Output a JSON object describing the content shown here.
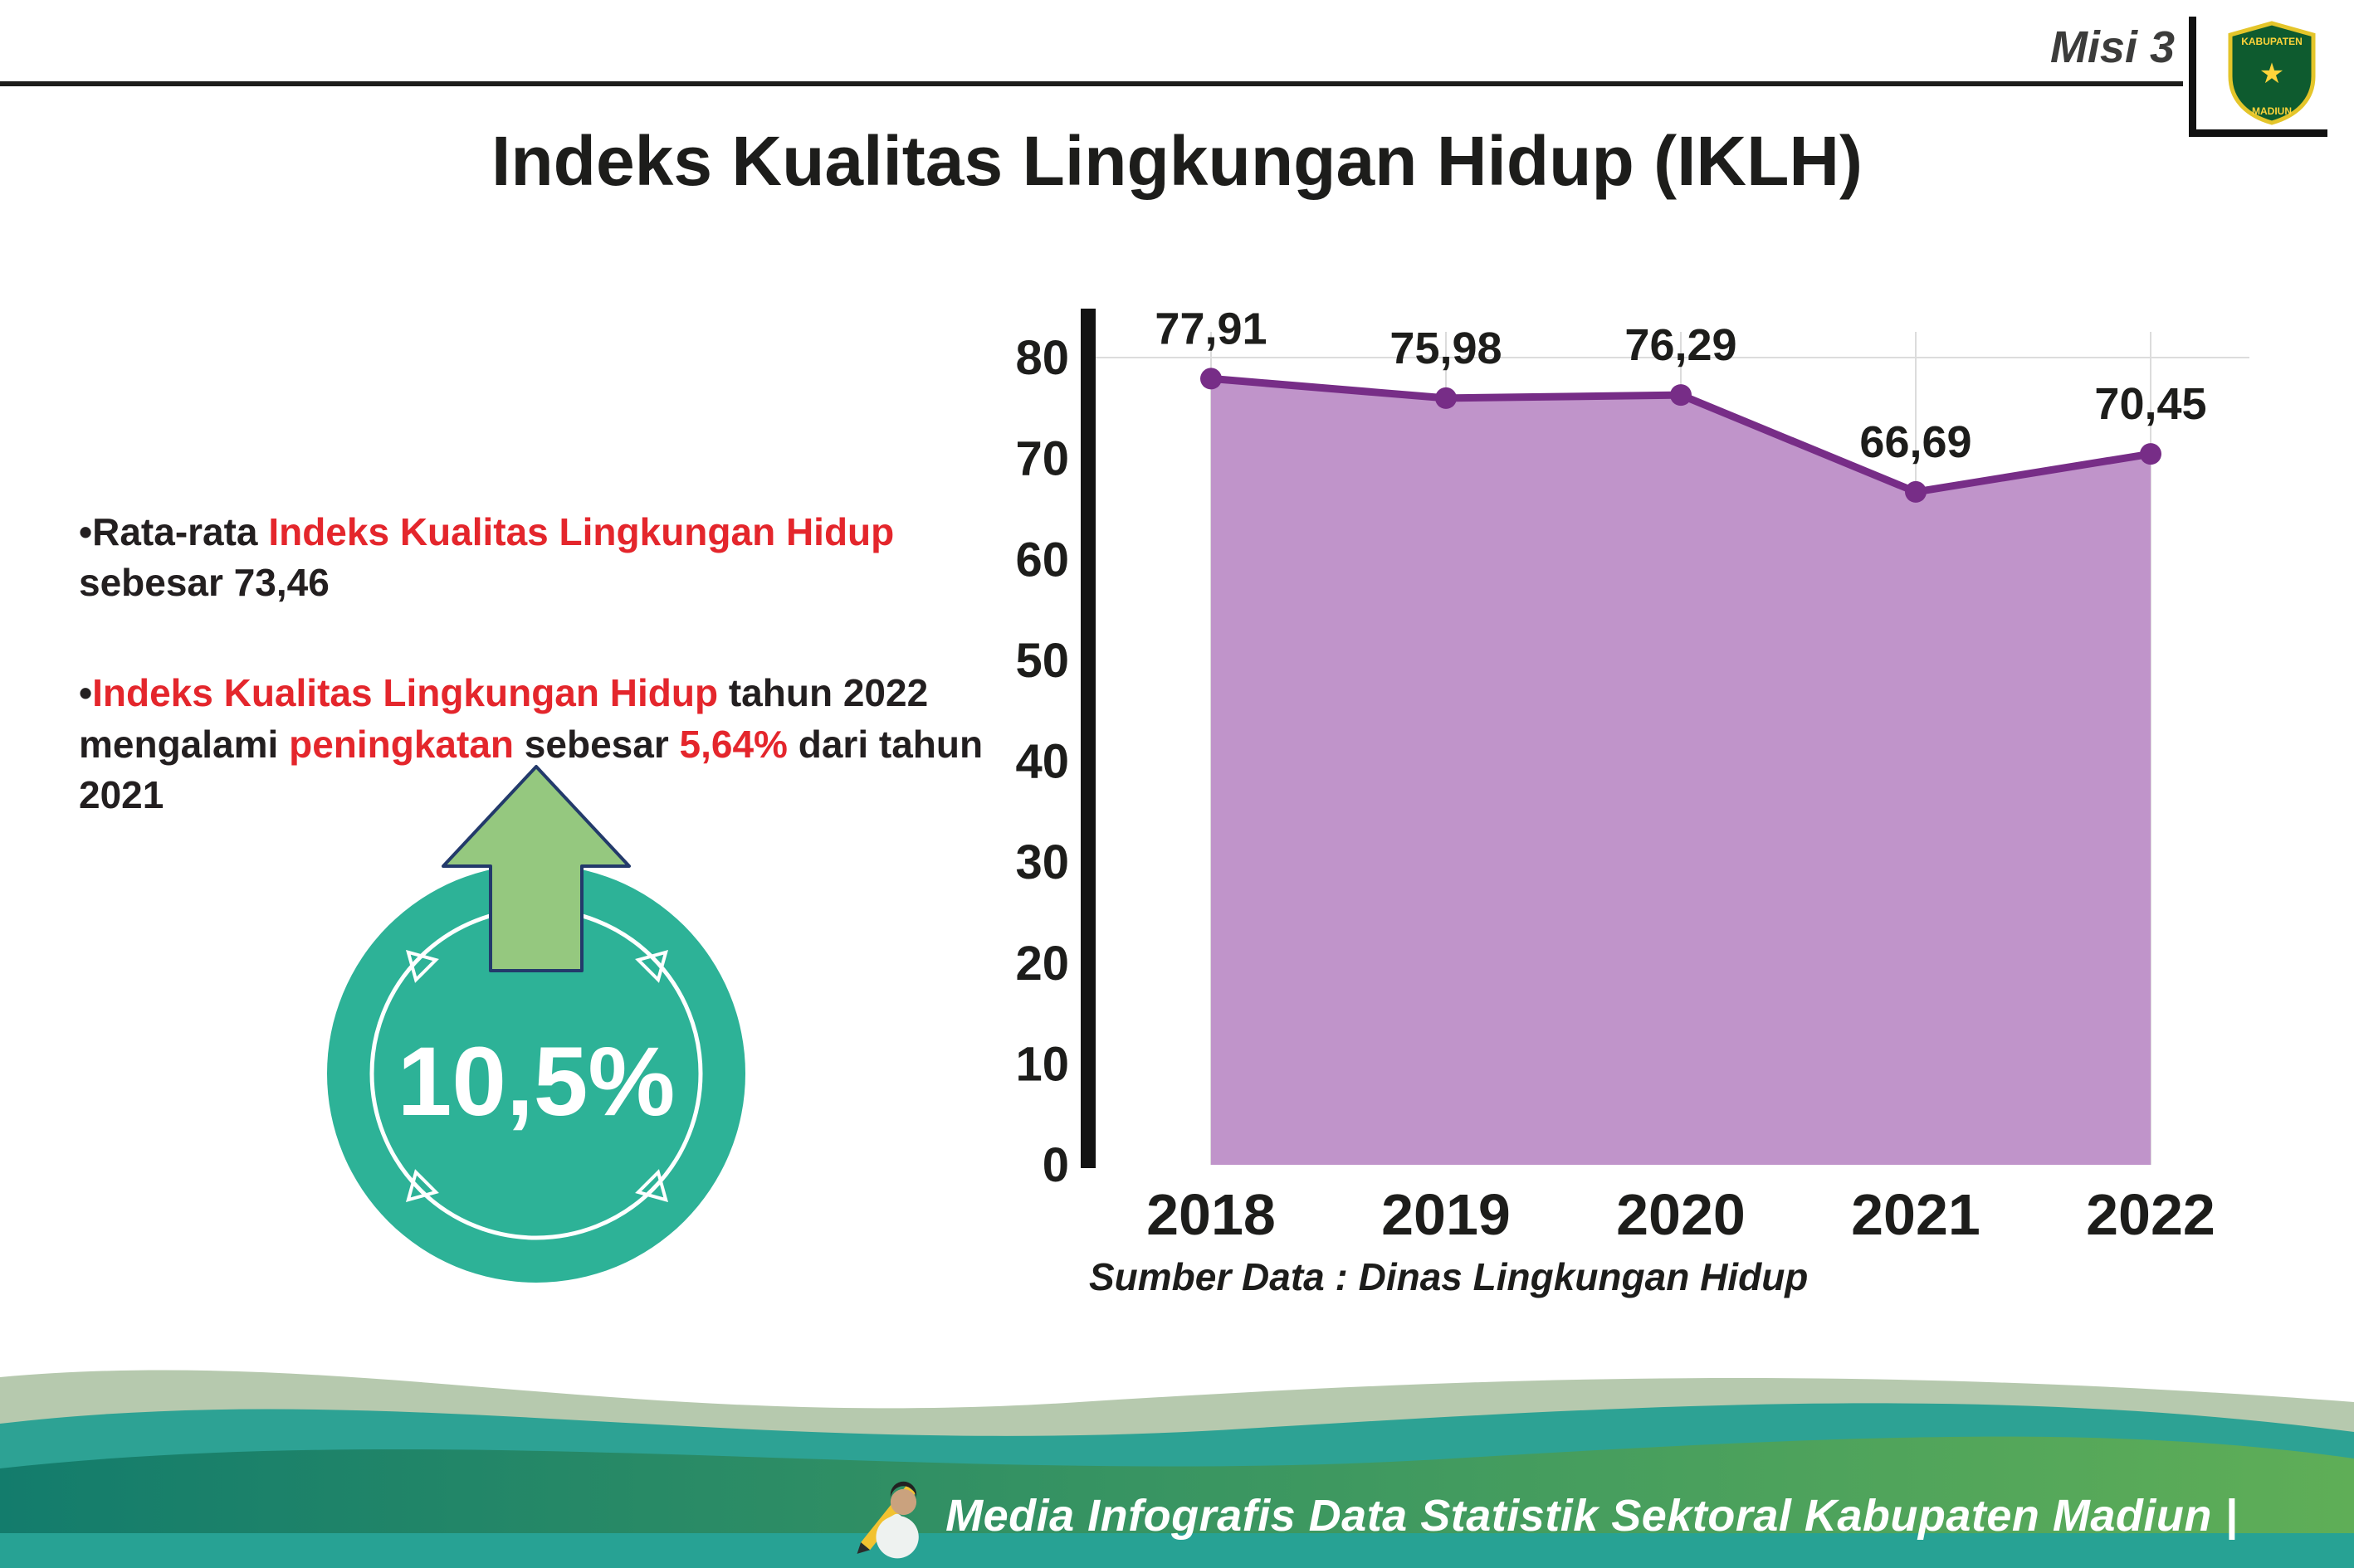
{
  "header": {
    "misi_label": "Misi 3",
    "title": "Indeks Kualitas Lingkungan Hidup (IKLH)",
    "logo": {
      "top": "KABUPATEN",
      "bottom": "MADIUN"
    }
  },
  "bullets": {
    "b1": {
      "bullet": "•",
      "s1": "Rata-rata ",
      "s2": "Indeks Kualitas Lingkungan Hidup",
      "s3": " sebesar 73,46"
    },
    "b2": {
      "bullet": "•",
      "s1": "Indeks Kualitas Lingkungan Hidup",
      "s2": " tahun 2022 mengalami ",
      "s3": "peningkatan",
      "s4": " sebesar ",
      "s5": "5,64%",
      "s6": " dari tahun 2021"
    }
  },
  "badge": {
    "value": "10,5%"
  },
  "chart_data": {
    "type": "area",
    "title": "Indeks Kualitas Lingkungan Hidup (IKLH)",
    "categories": [
      "2018",
      "2019",
      "2020",
      "2021",
      "2022"
    ],
    "values": [
      77.91,
      75.98,
      76.29,
      66.69,
      70.45
    ],
    "value_labels": [
      "77,91",
      "75,98",
      "76,29",
      "66,69",
      "70,45"
    ],
    "xlabel": "",
    "ylabel": "",
    "ylim": [
      0,
      80
    ],
    "yticks": [
      "80",
      "70",
      "60",
      "50",
      "40",
      "30",
      "20",
      "10",
      "0"
    ],
    "grid": "faint vertical gridlines per year, horizontal at 80",
    "legend": "none",
    "line_color": "#772d87",
    "fill_color": "#c094ca",
    "source": "Sumber Data : Dinas Lingkungan Hidup"
  },
  "footer": {
    "credit": "Media Infografis Data Statistik Sektoral Kabupaten Madiun |"
  },
  "colors": {
    "dark": "#1d1d1b",
    "accent_red": "#e4262c",
    "teal_circle": "#2db297",
    "arrow_green": "#95c87f",
    "wave_sage": "#b6c9ae",
    "wave_teal": "#2da294",
    "bottom_strip": "#27a294"
  }
}
